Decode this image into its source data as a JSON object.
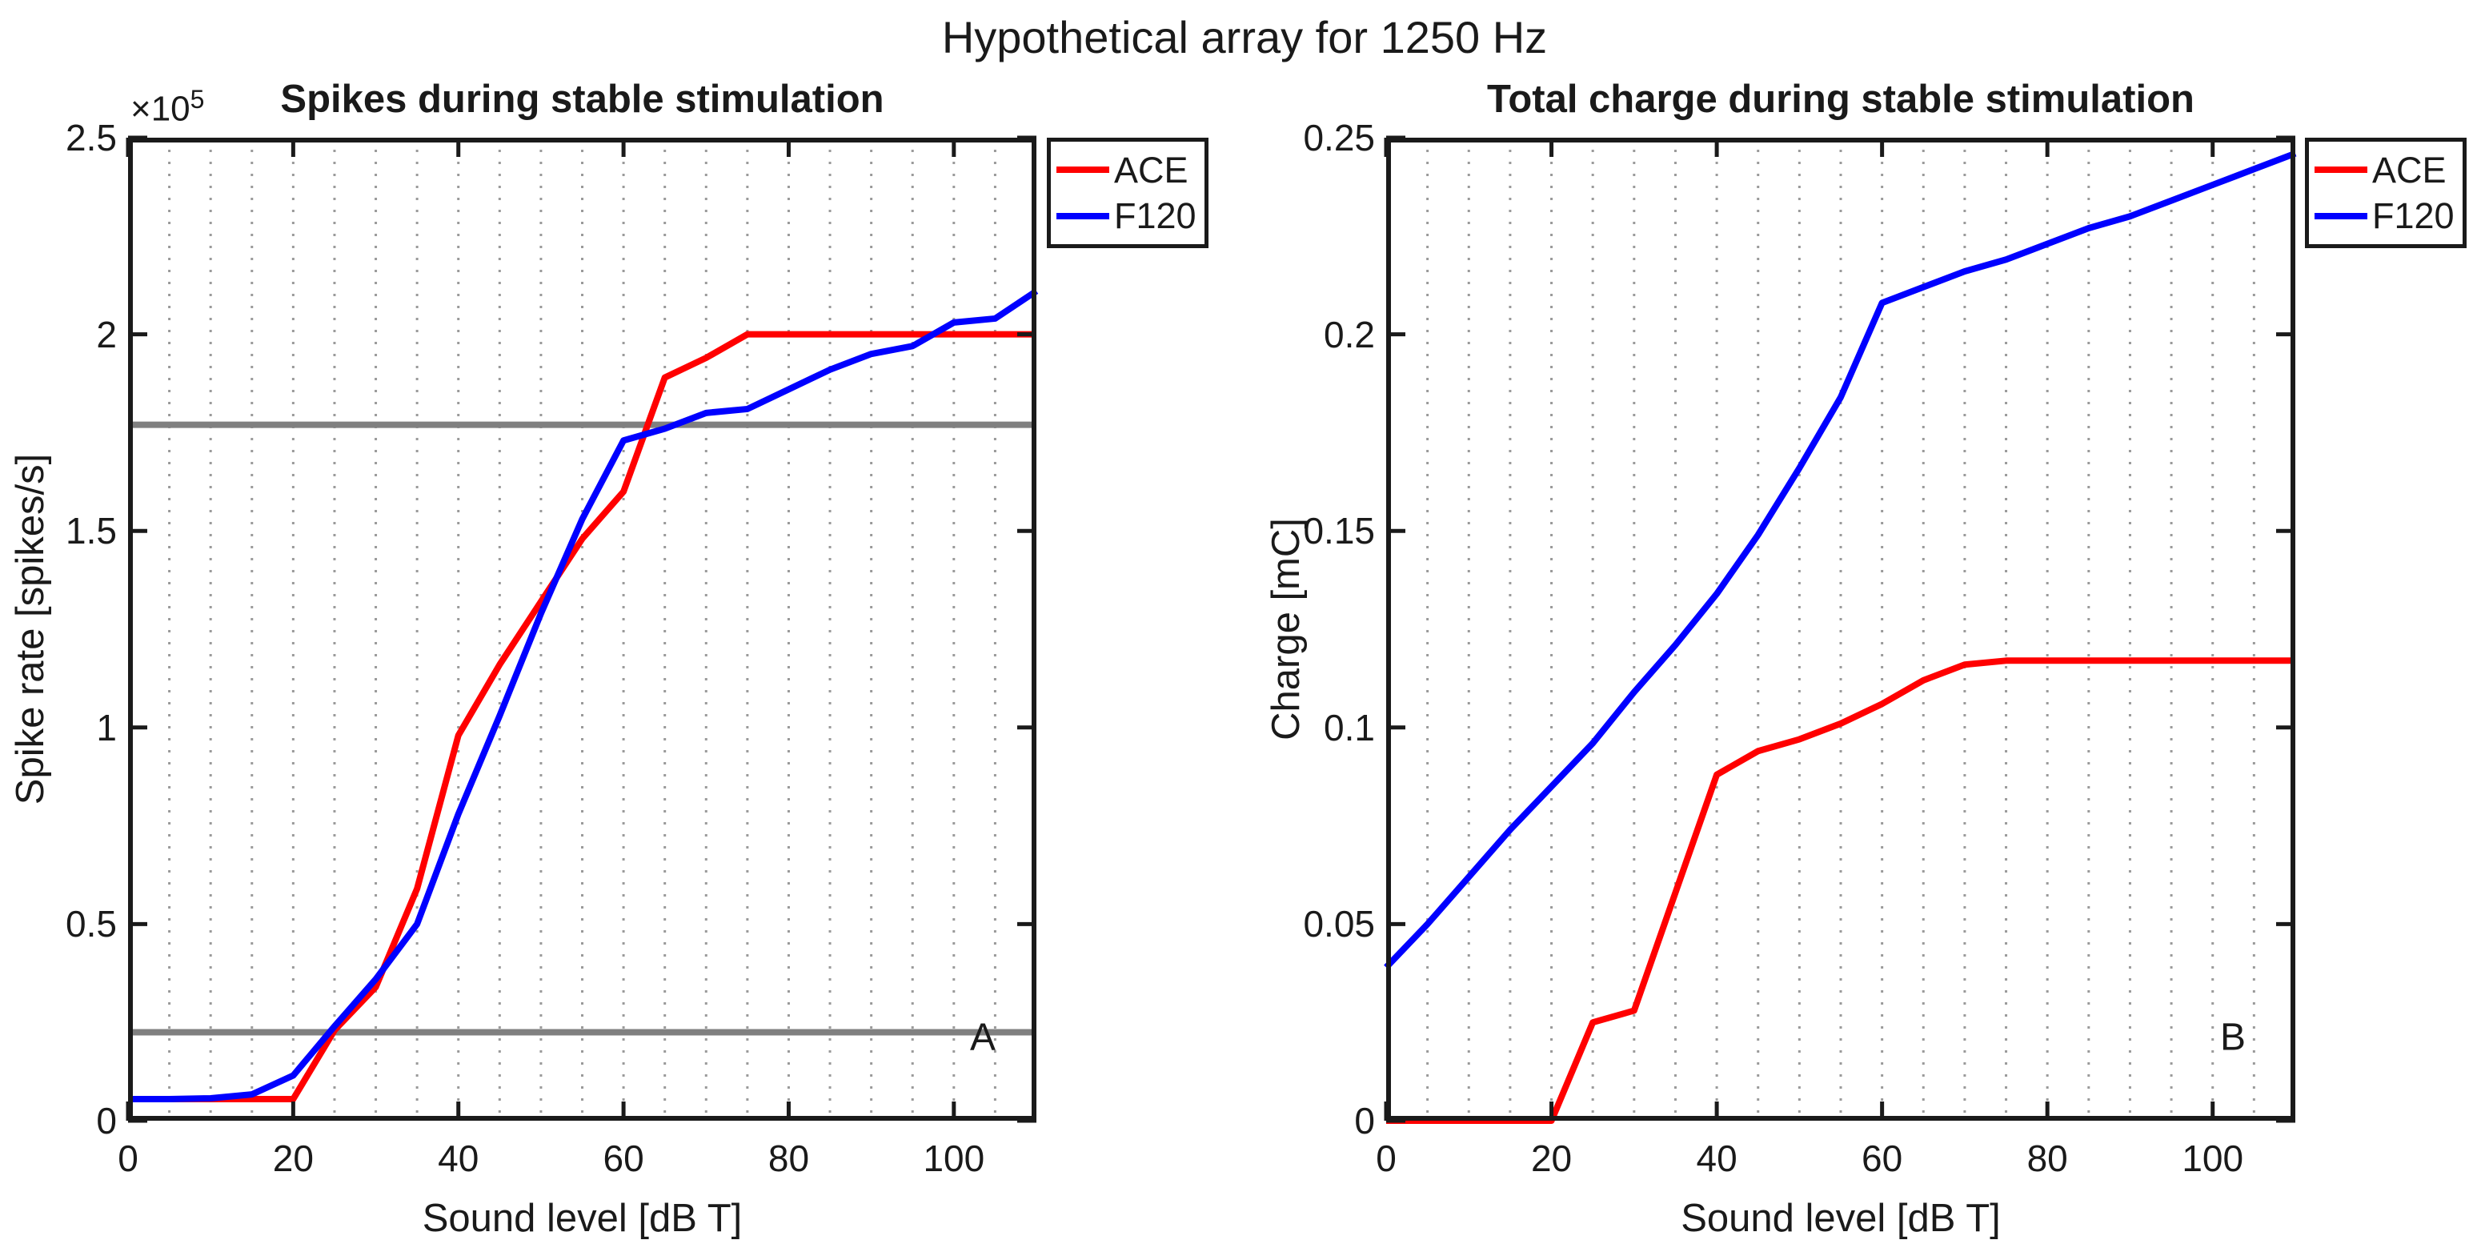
{
  "figure_title": "Hypothetical array for 1250 Hz",
  "colors": {
    "ace": "#FF0000",
    "f120": "#0000FF",
    "reference_line": "#808080",
    "grid": "#9a9a9a",
    "axis": "#1a1a1a",
    "background": "#ffffff"
  },
  "legend": [
    {
      "label": "ACE",
      "color": "#FF0000"
    },
    {
      "label": "F120",
      "color": "#0000FF"
    }
  ],
  "chart_data": [
    {
      "type": "line",
      "panel_label": "A",
      "title": "Spikes during stable stimulation",
      "xlabel": "Sound level [dB T]",
      "ylabel": "Spike rate [spikes/s]",
      "y_exponent_base": "×10",
      "y_exponent_power": "5",
      "xlim": [
        0,
        110
      ],
      "ylim": [
        0,
        250000
      ],
      "xticks": [
        0,
        20,
        40,
        60,
        80,
        100
      ],
      "xtick_labels": [
        "0",
        "20",
        "40",
        "60",
        "80",
        "100"
      ],
      "yticks": [
        0,
        50000,
        100000,
        150000,
        200000,
        250000
      ],
      "ytick_labels": [
        "0",
        "0.5",
        "1",
        "1.5",
        "2",
        "2.5"
      ],
      "minor_grid_x_step": 5,
      "grid": "x-minor-dotted",
      "legend_position": "outside-top-right",
      "reference_lines": [
        177000,
        22500
      ],
      "x": [
        0,
        5,
        10,
        15,
        20,
        25,
        30,
        35,
        40,
        45,
        50,
        55,
        60,
        65,
        70,
        75,
        80,
        85,
        90,
        95,
        100,
        105,
        110
      ],
      "series": [
        {
          "name": "ACE",
          "color": "#FF0000",
          "values": [
            5500,
            5500,
            5500,
            5500,
            5500,
            23000,
            34000,
            59000,
            98000,
            116000,
            132000,
            148000,
            160000,
            189000,
            194000,
            200000,
            200000,
            200000,
            200000,
            200000,
            200000,
            200000,
            200000
          ]
        },
        {
          "name": "F120",
          "color": "#0000FF",
          "values": [
            5500,
            5500,
            5700,
            6700,
            11500,
            24000,
            36000,
            50000,
            78000,
            103000,
            129000,
            153000,
            173000,
            176000,
            180000,
            181000,
            186000,
            191000,
            195000,
            197000,
            203000,
            204000,
            211000
          ]
        }
      ]
    },
    {
      "type": "line",
      "panel_label": "B",
      "title": "Total charge during stable stimulation",
      "xlabel": "Sound level [dB T]",
      "ylabel": "Charge [mC]",
      "xlim": [
        0,
        110
      ],
      "ylim": [
        0,
        0.25
      ],
      "xticks": [
        0,
        20,
        40,
        60,
        80,
        100
      ],
      "xtick_labels": [
        "0",
        "20",
        "40",
        "60",
        "80",
        "100"
      ],
      "yticks": [
        0,
        0.05,
        0.1,
        0.15,
        0.2,
        0.25
      ],
      "ytick_labels": [
        "0",
        "0.05",
        "0.1",
        "0.15",
        "0.2",
        "0.25"
      ],
      "minor_grid_x_step": 5,
      "grid": "x-minor-dotted",
      "legend_position": "outside-top-right",
      "reference_lines": [],
      "x": [
        0,
        5,
        10,
        15,
        20,
        25,
        30,
        35,
        40,
        45,
        50,
        55,
        60,
        65,
        70,
        75,
        80,
        85,
        90,
        95,
        100,
        105,
        110
      ],
      "series": [
        {
          "name": "ACE",
          "color": "#FF0000",
          "values": [
            0,
            0,
            0,
            0,
            0,
            0.025,
            0.028,
            0.058,
            0.088,
            0.094,
            0.097,
            0.101,
            0.106,
            0.112,
            0.116,
            0.117,
            0.117,
            0.117,
            0.117,
            0.117,
            0.117,
            0.117,
            0.117
          ]
        },
        {
          "name": "F120",
          "color": "#0000FF",
          "values": [
            0.039,
            0.05,
            0.062,
            0.074,
            0.085,
            0.096,
            0.109,
            0.121,
            0.134,
            0.149,
            0.166,
            0.184,
            0.208,
            0.212,
            0.216,
            0.219,
            0.223,
            0.227,
            0.23,
            0.234,
            0.238,
            0.242,
            0.246
          ]
        }
      ]
    }
  ]
}
